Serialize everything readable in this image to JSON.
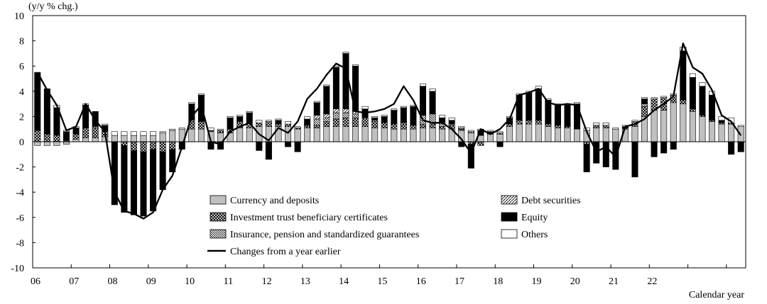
{
  "chart_data": {
    "type": "bar",
    "stacked": true,
    "ylabel": "(y/y % chg.)",
    "xlabel": "Calendar year",
    "ylim": [
      -10,
      10
    ],
    "yticks": [
      10,
      8,
      6,
      4,
      2,
      0,
      -2,
      -4,
      -6,
      -8,
      -10
    ],
    "grid": false,
    "legend_position": "bottom-center",
    "year_labels": [
      "06",
      "07",
      "08",
      "09",
      "10",
      "11",
      "12",
      "13",
      "14",
      "15",
      "16",
      "17",
      "18",
      "19",
      "20",
      "21",
      "22"
    ],
    "x_start": 2006.0,
    "x_step": 0.25,
    "total_line_name": "Changes from a year earlier",
    "series": [
      {
        "name": "Currency and deposits",
        "key": "cd",
        "fill": "#c0c0c0",
        "values": [
          -0.3,
          -0.3,
          -0.3,
          -0.2,
          0.2,
          0.3,
          0.3,
          0.4,
          0.5,
          0.5,
          0.5,
          0.5,
          0.5,
          0.7,
          0.9,
          1.0,
          1.0,
          1.0,
          0.8,
          0.7,
          0.7,
          1.1,
          1.1,
          1.2,
          1.2,
          1.2,
          1.2,
          1.0,
          1.1,
          1.1,
          1.2,
          1.2,
          1.2,
          1.2,
          1.2,
          1.1,
          1.1,
          1.0,
          1.0,
          1.0,
          1.1,
          1.1,
          1.0,
          1.0,
          0.9,
          0.7,
          0.5,
          0.6,
          0.6,
          1.2,
          1.4,
          1.4,
          1.4,
          1.2,
          1.1,
          1.1,
          1.0,
          0.9,
          1.1,
          1.1,
          1.0,
          1.0,
          1.2,
          2.0,
          2.5,
          2.5,
          3.1,
          3.0,
          2.4,
          2.0,
          1.6,
          1.4,
          1.4,
          1.2
        ]
      },
      {
        "name": "Investment trust beneficiary certificates",
        "key": "itb",
        "fill": "#ffffff",
        "pattern": "cross",
        "values": [
          0.9,
          0.6,
          0.5,
          0.1,
          0.4,
          0.8,
          0.8,
          0.4,
          0.0,
          -0.3,
          -0.7,
          -0.8,
          -0.6,
          -0.8,
          -0.6,
          0.0,
          0.6,
          0.6,
          0.1,
          0.2,
          0.3,
          0.4,
          0.4,
          0.3,
          0.4,
          0.2,
          0.2,
          0.1,
          0.1,
          0.2,
          0.4,
          0.6,
          0.7,
          0.7,
          0.7,
          0.5,
          0.4,
          0.4,
          0.4,
          0.3,
          0.3,
          0.3,
          0.2,
          0.3,
          0.1,
          -0.2,
          -0.3,
          0.0,
          0.1,
          0.2,
          0.3,
          0.3,
          0.3,
          0.2,
          0.2,
          0.1,
          0.0,
          -0.2,
          0.2,
          0.2,
          0.0,
          0.1,
          0.4,
          0.8,
          0.9,
          1.0,
          0.6,
          0.3,
          0.2,
          0.1,
          0.1,
          0.1,
          0.1,
          0.0
        ]
      },
      {
        "name": "Insurance, pension and standardized guarantees",
        "key": "ins",
        "fill": "#ffffff",
        "pattern": "hatch",
        "values": [
          0.0,
          0.0,
          0.0,
          0.0,
          0.0,
          0.0,
          0.1,
          0.0,
          0.0,
          0.0,
          0.0,
          0.0,
          0.0,
          0.0,
          0.0,
          0.0,
          0.1,
          0.0,
          0.0,
          0.0,
          0.0,
          0.1,
          0.0,
          0.0,
          0.0,
          0.0,
          0.0,
          0.0,
          0.1,
          0.5,
          0.3,
          0.5,
          0.4,
          0.3,
          0.0,
          0.1,
          0.0,
          0.0,
          0.1,
          0.0,
          0.7,
          0.8,
          0.3,
          0.1,
          0.1,
          0.1,
          0.0,
          0.0,
          0.0,
          0.0,
          0.0,
          0.0,
          0.0,
          0.0,
          0.0,
          0.0,
          0.0,
          0.0,
          0.0,
          0.0,
          0.0,
          0.0,
          0.0,
          0.2,
          0.0,
          0.0,
          0.0,
          0.0,
          0.0,
          0.0,
          0.0,
          0.0,
          0.0,
          0.0
        ]
      },
      {
        "name": "Debt securities",
        "key": "debt",
        "fill": "#ffffff",
        "pattern": "diag",
        "values": [
          0.0,
          0.0,
          0.0,
          0.0,
          0.0,
          0.0,
          0.0,
          0.0,
          0.0,
          0.0,
          0.0,
          0.0,
          0.0,
          0.0,
          0.0,
          0.0,
          0.0,
          0.0,
          0.0,
          0.0,
          0.0,
          0.0,
          0.0,
          0.0,
          0.0,
          0.0,
          0.0,
          0.0,
          0.0,
          0.3,
          0.3,
          0.3,
          0.3,
          0.2,
          0.0,
          0.0,
          0.0,
          0.0,
          0.0,
          0.0,
          0.0,
          0.0,
          0.0,
          0.0,
          0.0,
          0.0,
          0.0,
          0.0,
          0.0,
          0.0,
          0.0,
          0.0,
          0.0,
          0.0,
          0.0,
          0.0,
          0.0,
          0.0,
          0.0,
          0.0,
          0.0,
          0.0,
          0.0,
          0.0,
          0.0,
          0.0,
          0.0,
          0.0,
          0.0,
          0.0,
          0.0,
          0.0,
          0.0,
          0.0
        ]
      },
      {
        "name": "Equity",
        "key": "eq",
        "fill": "#000000",
        "values": [
          4.6,
          3.6,
          2.2,
          0.7,
          0.5,
          1.8,
          1.2,
          0.5,
          -5.0,
          -5.3,
          -5.1,
          -5.1,
          -4.9,
          -3.0,
          -1.8,
          -0.6,
          1.3,
          2.1,
          -0.6,
          -0.6,
          0.9,
          0.4,
          0.8,
          -0.7,
          -1.4,
          0.3,
          -0.4,
          -0.8,
          0.5,
          1.0,
          2.2,
          3.3,
          4.4,
          3.6,
          0.7,
          0.2,
          0.5,
          1.1,
          1.2,
          1.5,
          2.3,
          1.8,
          0.4,
          0.3,
          -0.4,
          -1.9,
          0.4,
          0.2,
          -0.4,
          0.5,
          2.0,
          2.2,
          2.5,
          1.9,
          1.6,
          1.7,
          2.0,
          -2.2,
          -1.7,
          -2.0,
          -2.2,
          0.1,
          -2.8,
          0.4,
          -1.2,
          -0.9,
          -0.6,
          3.9,
          2.5,
          2.3,
          2.0,
          0.2,
          -1.0,
          -0.8
        ]
      },
      {
        "name": "Others",
        "key": "oth",
        "fill": "#ffffff",
        "values": [
          0.0,
          0.0,
          0.2,
          0.1,
          0.1,
          0.1,
          0.0,
          0.1,
          0.3,
          0.3,
          0.3,
          0.3,
          0.3,
          0.1,
          0.1,
          0.1,
          0.1,
          0.1,
          0.2,
          0.1,
          0.1,
          0.1,
          0.1,
          0.2,
          0.1,
          0.1,
          0.2,
          0.1,
          0.2,
          0.1,
          0.1,
          0.1,
          0.1,
          0.1,
          0.2,
          0.1,
          0.1,
          0.1,
          0.1,
          0.1,
          0.2,
          0.2,
          0.2,
          0.2,
          0.1,
          0.1,
          0.1,
          0.1,
          0.1,
          0.1,
          0.1,
          0.1,
          0.2,
          0.1,
          0.1,
          0.1,
          0.1,
          0.2,
          0.2,
          0.2,
          0.1,
          0.1,
          0.1,
          0.1,
          0.1,
          0.1,
          0.1,
          0.3,
          0.3,
          0.3,
          0.3,
          0.3,
          0.4,
          0.1
        ]
      }
    ],
    "total_line": [
      5.5,
      4.1,
      2.9,
      0.9,
      1.2,
      3.0,
      1.7,
      0.8,
      -4.0,
      -5.5,
      -5.7,
      -6.1,
      -5.6,
      -3.8,
      -2.7,
      -0.4,
      2.0,
      2.9,
      0.0,
      -0.2,
      0.8,
      1.2,
      1.5,
      0.6,
      0.1,
      1.1,
      0.7,
      1.6,
      3.4,
      4.2,
      5.3,
      6.2,
      5.8,
      2.4,
      2.3,
      2.4,
      2.6,
      3.0,
      4.4,
      3.3,
      1.7,
      1.5,
      1.5,
      1.0,
      0.2,
      -0.9,
      1.0,
      0.6,
      1.0,
      1.8,
      3.7,
      3.9,
      4.2,
      3.1,
      2.9,
      3.0,
      2.9,
      0.8,
      -0.8,
      -0.4,
      -1.2,
      1.2,
      1.4,
      1.8,
      2.5,
      3.0,
      3.6,
      7.8,
      5.9,
      5.4,
      4.1,
      2.1,
      1.6,
      0.5
    ]
  },
  "legend": {
    "cd": "Currency and deposits",
    "debt": "Debt securities",
    "itb": "Investment trust beneficiary certificates",
    "eq": "Equity",
    "ins": "Insurance, pension and standardized guarantees",
    "oth": "Others",
    "line": "Changes from a year earlier"
  }
}
